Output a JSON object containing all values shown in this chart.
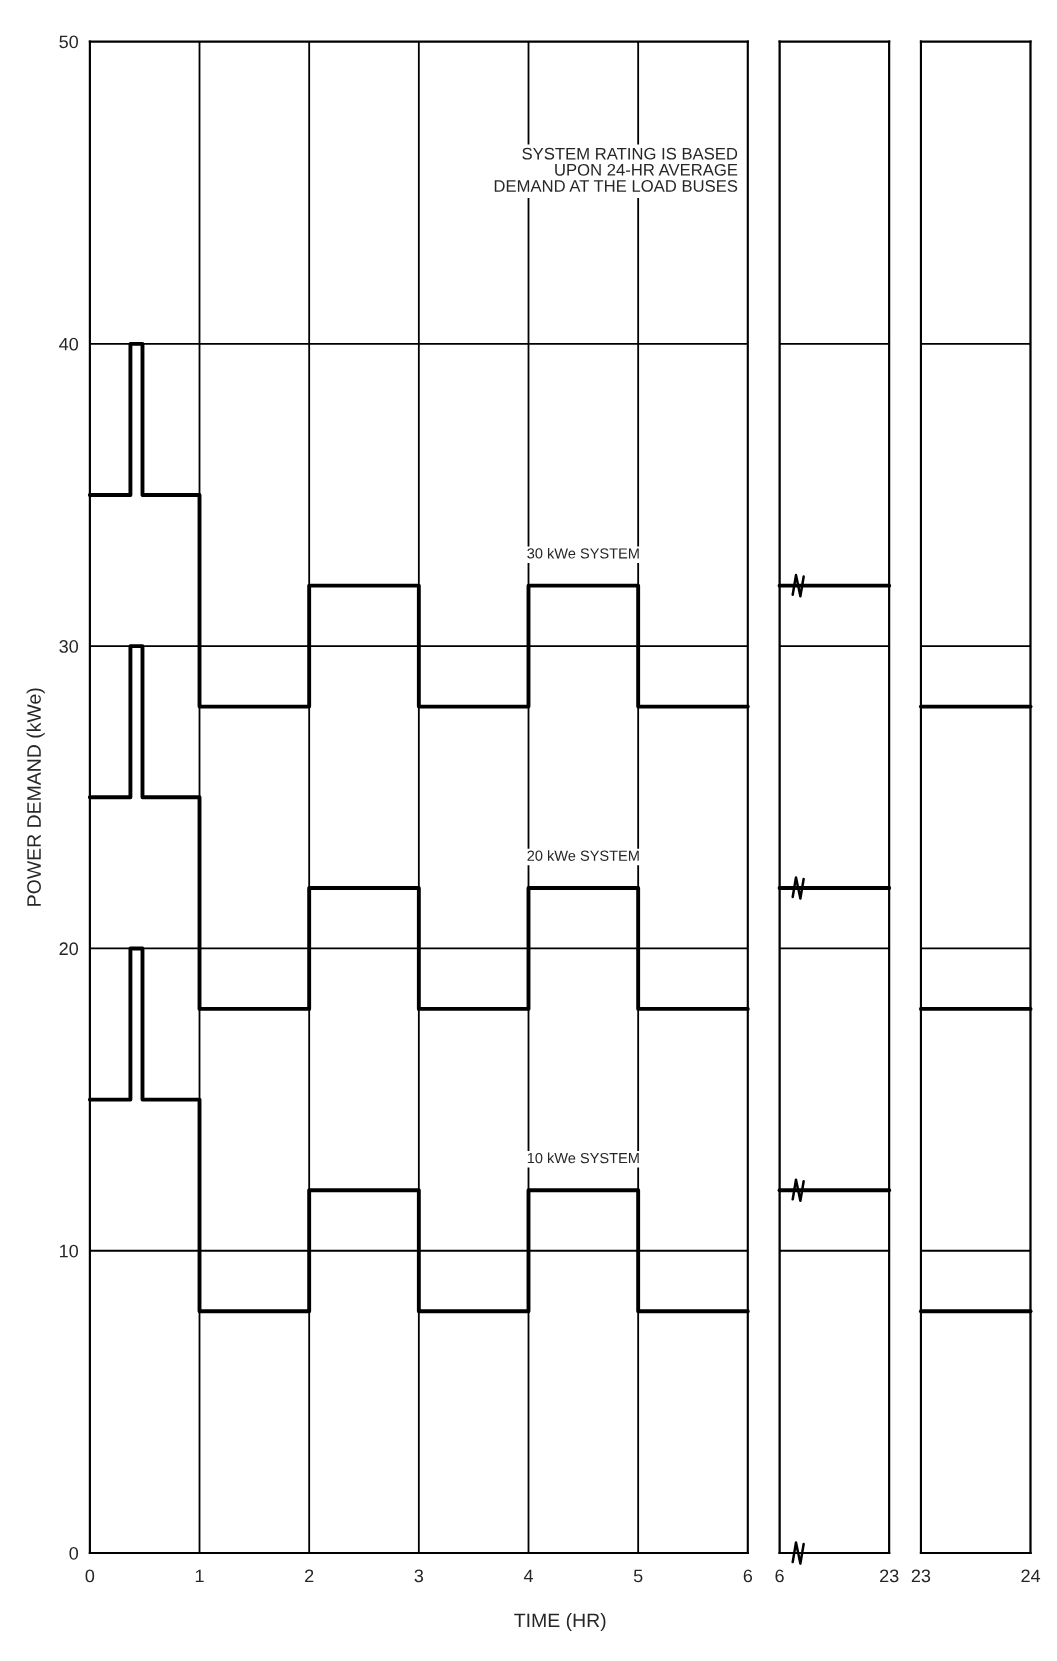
{
  "chart_data": [
    {
      "type": "step",
      "xlabel": "TIME (HR)",
      "ylabel": "POWER DEMAND (kWe)",
      "x": [
        0,
        0.37,
        0.48,
        1,
        2,
        3,
        4,
        5,
        6
      ],
      "series": [
        {
          "name": "30 kWe SYSTEM",
          "color": "#000000",
          "values": [
            35,
            40,
            35,
            28,
            32,
            28,
            32,
            28,
            28
          ]
        },
        {
          "name": "20 kWe SYSTEM",
          "color": "#000000",
          "values": [
            25,
            30,
            25,
            18,
            22,
            18,
            22,
            18,
            18
          ]
        },
        {
          "name": "10 kWe SYSTEM",
          "color": "#000000",
          "values": [
            15,
            20,
            15,
            8,
            12,
            8,
            12,
            8,
            8
          ]
        }
      ],
      "annotations": [
        "SYSTEM RATING IS BASED\nUPON 24-HR AVERAGE\nDEMAND AT THE LOAD BUSES"
      ],
      "xlim": [
        0,
        6
      ],
      "xticks": [
        0,
        1,
        2,
        3,
        4,
        5,
        6
      ],
      "ylim": [
        0,
        50
      ],
      "yticks": [
        0,
        10,
        20,
        30,
        40,
        50
      ],
      "grid": true,
      "line_style": "solid",
      "marker": "none"
    },
    {
      "type": "step",
      "x": [
        6,
        23
      ],
      "series": [
        {
          "color": "#000000",
          "values": [
            32,
            32
          ]
        },
        {
          "color": "#000000",
          "values": [
            22,
            22
          ]
        },
        {
          "color": "#000000",
          "values": [
            12,
            12
          ]
        }
      ],
      "xlim": [
        6,
        23
      ],
      "xticks": [
        6,
        23
      ],
      "ylim": [
        0,
        50
      ],
      "yticks": [
        0,
        10,
        20,
        30,
        40,
        50
      ],
      "tick_labels": "x",
      "grid": true,
      "line_style": "solid",
      "marker": "none"
    },
    {
      "type": "step",
      "x": [
        23,
        24
      ],
      "series": [
        {
          "color": "#000000",
          "values": [
            28,
            28
          ]
        },
        {
          "color": "#000000",
          "values": [
            18,
            18
          ]
        },
        {
          "color": "#000000",
          "values": [
            8,
            8
          ]
        }
      ],
      "xlim": [
        23,
        24
      ],
      "xticks": [
        23,
        24
      ],
      "ylim": [
        0,
        50
      ],
      "yticks": [
        0,
        10,
        20,
        30,
        40,
        50
      ],
      "tick_labels": "x",
      "grid": true,
      "line_style": "solid",
      "marker": "none"
    }
  ]
}
